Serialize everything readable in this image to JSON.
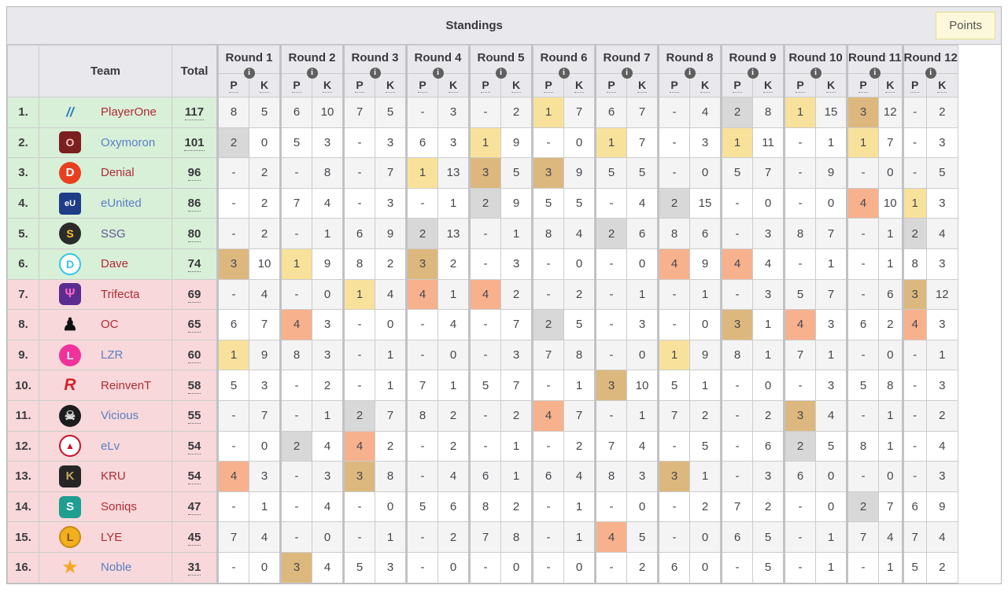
{
  "header": {
    "title": "Standings",
    "points_label": "Points"
  },
  "colors": {
    "zone_up": "#d8efd8",
    "zone_down": "#f8d8da",
    "placement": {
      "1": "#f8e29b",
      "2": "#d8d8d8",
      "3": "#ddb87e",
      "4": "#f8b18d"
    },
    "accent_button_bg": "#fcf8db",
    "accent_button_border": "#e6de8e"
  },
  "table": {
    "team_header": "Team",
    "total_header": "Total",
    "placement_abbr": "P",
    "kills_abbr": "K",
    "info_icon_glyph": "i",
    "rounds": [
      "Round 1",
      "Round 2",
      "Round 3",
      "Round 4",
      "Round 5",
      "Round 6",
      "Round 7",
      "Round 8",
      "Round 9",
      "Round 10",
      "Round 11",
      "Round 12"
    ],
    "teams": [
      {
        "rank": "1.",
        "name": "PlayerOne",
        "link_color": "#b02b35",
        "total": "117",
        "zone": "up",
        "logo": {
          "glyph": "//",
          "bg": "transparent",
          "fg": "#2b7bc2",
          "size": 17,
          "italic": true
        },
        "rounds": [
          [
            "8",
            "5"
          ],
          [
            "6",
            "10"
          ],
          [
            "7",
            "5"
          ],
          [
            "-",
            "3"
          ],
          [
            "-",
            "2"
          ],
          [
            "1",
            "7"
          ],
          [
            "6",
            "7"
          ],
          [
            "-",
            "4"
          ],
          [
            "2",
            "8"
          ],
          [
            "1",
            "15"
          ],
          [
            "3",
            "12"
          ],
          [
            "-",
            "2"
          ]
        ]
      },
      {
        "rank": "2.",
        "name": "Oxymoron",
        "link_color": "#5b7fc4",
        "total": "101",
        "zone": "up",
        "logo": {
          "glyph": "O",
          "bg": "#7c1f1f",
          "fg": "#f0c0c0",
          "size": 14,
          "radius": "5px"
        },
        "rounds": [
          [
            "2",
            "0"
          ],
          [
            "5",
            "3"
          ],
          [
            "-",
            "3"
          ],
          [
            "6",
            "3"
          ],
          [
            "1",
            "9"
          ],
          [
            "-",
            "0"
          ],
          [
            "1",
            "7"
          ],
          [
            "-",
            "3"
          ],
          [
            "1",
            "11"
          ],
          [
            "-",
            "1"
          ],
          [
            "1",
            "7"
          ],
          [
            "-",
            "3"
          ]
        ]
      },
      {
        "rank": "3.",
        "name": "Denial",
        "link_color": "#b02b35",
        "total": "96",
        "zone": "up",
        "logo": {
          "glyph": "D",
          "bg": "#e8401f",
          "fg": "#ffffff",
          "size": 15,
          "radius": "50%"
        },
        "rounds": [
          [
            "-",
            "2"
          ],
          [
            "-",
            "8"
          ],
          [
            "-",
            "7"
          ],
          [
            "1",
            "13"
          ],
          [
            "3",
            "5"
          ],
          [
            "3",
            "9"
          ],
          [
            "5",
            "5"
          ],
          [
            "-",
            "0"
          ],
          [
            "5",
            "7"
          ],
          [
            "-",
            "9"
          ],
          [
            "-",
            "0"
          ],
          [
            "-",
            "5"
          ]
        ]
      },
      {
        "rank": "4.",
        "name": "eUnited",
        "link_color": "#5b7fc4",
        "total": "86",
        "zone": "up",
        "logo": {
          "glyph": "eU",
          "bg": "#1f3c88",
          "fg": "#ffffff",
          "size": 11,
          "radius": "4px"
        },
        "rounds": [
          [
            "-",
            "2"
          ],
          [
            "7",
            "4"
          ],
          [
            "-",
            "3"
          ],
          [
            "-",
            "1"
          ],
          [
            "2",
            "9"
          ],
          [
            "5",
            "5"
          ],
          [
            "-",
            "4"
          ],
          [
            "2",
            "15"
          ],
          [
            "-",
            "0"
          ],
          [
            "-",
            "0"
          ],
          [
            "4",
            "10"
          ],
          [
            "1",
            "3"
          ]
        ]
      },
      {
        "rank": "5.",
        "name": "SSG",
        "link_color": "#5f5890",
        "total": "80",
        "zone": "up",
        "logo": {
          "glyph": "S",
          "bg": "#2b2b2b",
          "fg": "#f7c325",
          "size": 14,
          "radius": "50%"
        },
        "rounds": [
          [
            "-",
            "2"
          ],
          [
            "-",
            "1"
          ],
          [
            "6",
            "9"
          ],
          [
            "2",
            "13"
          ],
          [
            "-",
            "1"
          ],
          [
            "8",
            "4"
          ],
          [
            "2",
            "6"
          ],
          [
            "8",
            "6"
          ],
          [
            "-",
            "3"
          ],
          [
            "8",
            "7"
          ],
          [
            "-",
            "1"
          ],
          [
            "2",
            "4"
          ]
        ]
      },
      {
        "rank": "6.",
        "name": "Dave",
        "link_color": "#b02b35",
        "total": "74",
        "zone": "up",
        "logo": {
          "glyph": "D",
          "bg": "#ffffff",
          "fg": "#35c5ee",
          "size": 14,
          "radius": "50%",
          "border": "2px solid #35c5ee"
        },
        "rounds": [
          [
            "3",
            "10"
          ],
          [
            "1",
            "9"
          ],
          [
            "8",
            "2"
          ],
          [
            "3",
            "2"
          ],
          [
            "-",
            "3"
          ],
          [
            "-",
            "0"
          ],
          [
            "-",
            "0"
          ],
          [
            "4",
            "9"
          ],
          [
            "4",
            "4"
          ],
          [
            "-",
            "1"
          ],
          [
            "-",
            "1"
          ],
          [
            "8",
            "3"
          ]
        ]
      },
      {
        "rank": "7.",
        "name": "Trifecta",
        "link_color": "#b02b35",
        "total": "69",
        "zone": "down",
        "logo": {
          "glyph": "Ψ",
          "bg": "#5c2d91",
          "fg": "#ff66c4",
          "size": 16,
          "radius": "6px"
        },
        "rounds": [
          [
            "-",
            "4"
          ],
          [
            "-",
            "0"
          ],
          [
            "1",
            "4"
          ],
          [
            "4",
            "1"
          ],
          [
            "4",
            "2"
          ],
          [
            "-",
            "2"
          ],
          [
            "-",
            "1"
          ],
          [
            "-",
            "1"
          ],
          [
            "-",
            "3"
          ],
          [
            "5",
            "7"
          ],
          [
            "-",
            "6"
          ],
          [
            "3",
            "12"
          ]
        ]
      },
      {
        "rank": "8.",
        "name": "OC",
        "link_color": "#b02b35",
        "total": "65",
        "zone": "down",
        "logo": {
          "glyph": "♟",
          "bg": "transparent",
          "fg": "#111111",
          "size": 22
        },
        "rounds": [
          [
            "6",
            "7"
          ],
          [
            "4",
            "3"
          ],
          [
            "-",
            "0"
          ],
          [
            "-",
            "4"
          ],
          [
            "-",
            "7"
          ],
          [
            "2",
            "5"
          ],
          [
            "-",
            "3"
          ],
          [
            "-",
            "0"
          ],
          [
            "3",
            "1"
          ],
          [
            "4",
            "3"
          ],
          [
            "6",
            "2"
          ],
          [
            "4",
            "3"
          ]
        ]
      },
      {
        "rank": "9.",
        "name": "LZR",
        "link_color": "#5b7fc4",
        "total": "60",
        "zone": "down",
        "logo": {
          "glyph": "L",
          "bg": "#f0329b",
          "fg": "#ffffff",
          "size": 14,
          "radius": "50%"
        },
        "rounds": [
          [
            "1",
            "9"
          ],
          [
            "8",
            "3"
          ],
          [
            "-",
            "1"
          ],
          [
            "-",
            "0"
          ],
          [
            "-",
            "3"
          ],
          [
            "7",
            "8"
          ],
          [
            "-",
            "0"
          ],
          [
            "1",
            "9"
          ],
          [
            "8",
            "1"
          ],
          [
            "7",
            "1"
          ],
          [
            "-",
            "0"
          ],
          [
            "-",
            "1"
          ]
        ]
      },
      {
        "rank": "10.",
        "name": "ReinvenT",
        "link_color": "#b02b35",
        "total": "58",
        "zone": "down",
        "logo": {
          "glyph": "R",
          "bg": "transparent",
          "fg": "#d5222a",
          "size": 21,
          "italic": true
        },
        "rounds": [
          [
            "5",
            "3"
          ],
          [
            "-",
            "2"
          ],
          [
            "-",
            "1"
          ],
          [
            "7",
            "1"
          ],
          [
            "5",
            "7"
          ],
          [
            "-",
            "1"
          ],
          [
            "3",
            "10"
          ],
          [
            "5",
            "1"
          ],
          [
            "-",
            "0"
          ],
          [
            "-",
            "3"
          ],
          [
            "5",
            "8"
          ],
          [
            "-",
            "3"
          ]
        ]
      },
      {
        "rank": "11.",
        "name": "Vicious",
        "link_color": "#5b7fc4",
        "total": "55",
        "zone": "down",
        "logo": {
          "glyph": "☠",
          "bg": "#1d1d1d",
          "fg": "#e8e8e8",
          "size": 16,
          "radius": "50%"
        },
        "rounds": [
          [
            "-",
            "7"
          ],
          [
            "-",
            "1"
          ],
          [
            "2",
            "7"
          ],
          [
            "8",
            "2"
          ],
          [
            "-",
            "2"
          ],
          [
            "4",
            "7"
          ],
          [
            "-",
            "1"
          ],
          [
            "7",
            "2"
          ],
          [
            "-",
            "2"
          ],
          [
            "3",
            "4"
          ],
          [
            "-",
            "1"
          ],
          [
            "-",
            "2"
          ]
        ]
      },
      {
        "rank": "12.",
        "name": "eLv",
        "link_color": "#5b7fc4",
        "total": "54",
        "zone": "down",
        "logo": {
          "glyph": "▲",
          "bg": "#ffffff",
          "fg": "#c8102e",
          "size": 12,
          "radius": "50%",
          "border": "2px solid #c8102e"
        },
        "rounds": [
          [
            "-",
            "0"
          ],
          [
            "2",
            "4"
          ],
          [
            "4",
            "2"
          ],
          [
            "-",
            "2"
          ],
          [
            "-",
            "1"
          ],
          [
            "-",
            "2"
          ],
          [
            "7",
            "4"
          ],
          [
            "-",
            "5"
          ],
          [
            "-",
            "6"
          ],
          [
            "2",
            "5"
          ],
          [
            "8",
            "1"
          ],
          [
            "-",
            "4"
          ]
        ]
      },
      {
        "rank": "13.",
        "name": "KRU",
        "link_color": "#b02b35",
        "total": "54",
        "zone": "down",
        "logo": {
          "glyph": "K",
          "bg": "#262626",
          "fg": "#c9a860",
          "size": 15,
          "radius": "6px"
        },
        "rounds": [
          [
            "4",
            "3"
          ],
          [
            "-",
            "3"
          ],
          [
            "3",
            "8"
          ],
          [
            "-",
            "4"
          ],
          [
            "6",
            "1"
          ],
          [
            "6",
            "4"
          ],
          [
            "8",
            "3"
          ],
          [
            "3",
            "1"
          ],
          [
            "-",
            "3"
          ],
          [
            "6",
            "0"
          ],
          [
            "-",
            "0"
          ],
          [
            "-",
            "3"
          ]
        ]
      },
      {
        "rank": "14.",
        "name": "Soniqs",
        "link_color": "#b02b35",
        "total": "47",
        "zone": "down",
        "logo": {
          "glyph": "S",
          "bg": "#1f9e92",
          "fg": "#ffffff",
          "size": 15,
          "radius": "6px"
        },
        "rounds": [
          [
            "-",
            "1"
          ],
          [
            "-",
            "4"
          ],
          [
            "-",
            "0"
          ],
          [
            "5",
            "6"
          ],
          [
            "8",
            "2"
          ],
          [
            "-",
            "1"
          ],
          [
            "-",
            "0"
          ],
          [
            "-",
            "2"
          ],
          [
            "7",
            "2"
          ],
          [
            "-",
            "0"
          ],
          [
            "2",
            "7"
          ],
          [
            "6",
            "9"
          ]
        ]
      },
      {
        "rank": "15.",
        "name": "LYE",
        "link_color": "#b02b35",
        "total": "45",
        "zone": "down",
        "logo": {
          "glyph": "L",
          "bg": "#f2b01e",
          "fg": "#7a4e00",
          "size": 14,
          "radius": "50%",
          "border": "2px solid #c88a12"
        },
        "rounds": [
          [
            "7",
            "4"
          ],
          [
            "-",
            "0"
          ],
          [
            "-",
            "1"
          ],
          [
            "-",
            "2"
          ],
          [
            "7",
            "8"
          ],
          [
            "-",
            "1"
          ],
          [
            "4",
            "5"
          ],
          [
            "-",
            "0"
          ],
          [
            "6",
            "5"
          ],
          [
            "-",
            "1"
          ],
          [
            "7",
            "4"
          ],
          [
            "7",
            "4"
          ]
        ]
      },
      {
        "rank": "16.",
        "name": "Noble",
        "link_color": "#5b7fc4",
        "total": "31",
        "zone": "down",
        "logo": {
          "glyph": "★",
          "bg": "transparent",
          "fg": "#f5a623",
          "size": 21
        },
        "rounds": [
          [
            "-",
            "0"
          ],
          [
            "3",
            "4"
          ],
          [
            "5",
            "3"
          ],
          [
            "-",
            "0"
          ],
          [
            "-",
            "0"
          ],
          [
            "-",
            "0"
          ],
          [
            "-",
            "2"
          ],
          [
            "6",
            "0"
          ],
          [
            "-",
            "5"
          ],
          [
            "-",
            "1"
          ],
          [
            "-",
            "1"
          ],
          [
            "5",
            "2"
          ]
        ]
      }
    ]
  }
}
